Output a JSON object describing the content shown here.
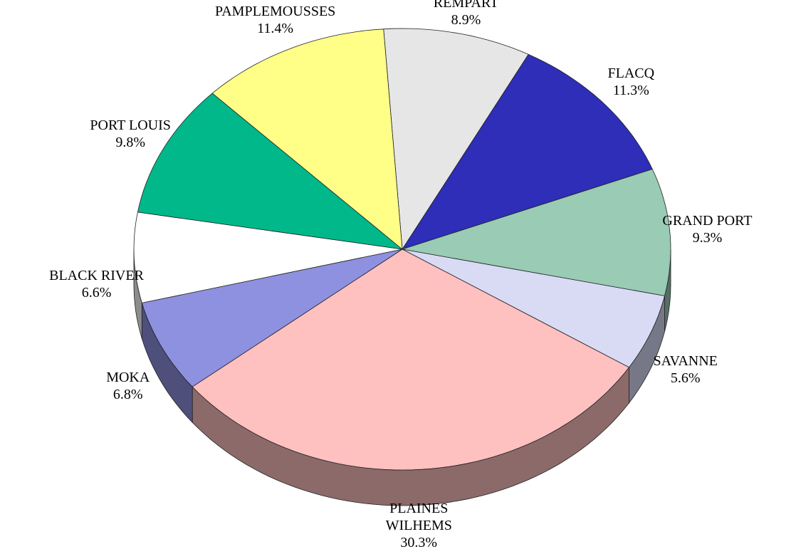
{
  "chart_data": {
    "type": "pie",
    "categories": [
      "RIVIERE DU REMPART",
      "FLACQ",
      "GRAND PORT",
      "SAVANNE",
      "PLAINES WILHEMS",
      "MOKA",
      "BLACK RIVER",
      "PORT LOUIS",
      "PAMPLEMOUSSES"
    ],
    "values": [
      8.9,
      11.3,
      9.3,
      5.6,
      30.3,
      6.8,
      6.6,
      9.8,
      11.4
    ],
    "value_labels": [
      "8.9%",
      "11.3%",
      "9.3%",
      "5.6%",
      "30.3%",
      "6.8%",
      "6.6%",
      "9.8%",
      "11.4%"
    ],
    "colors": [
      "#e6e6e6",
      "#2e2eb8",
      "#99cbb5",
      "#d9dbf5",
      "#ffc0c0",
      "#8e90e0",
      "#ffffff",
      "#00b88a",
      "#ffff88"
    ]
  }
}
